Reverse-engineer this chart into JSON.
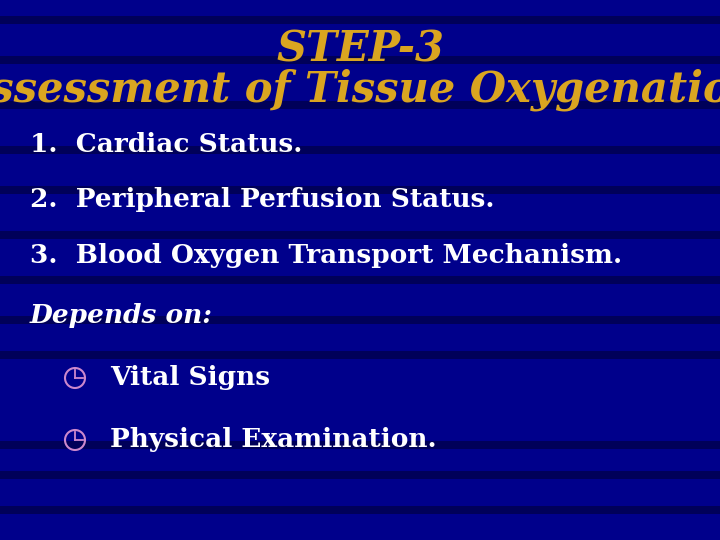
{
  "background_color": "#00008B",
  "title_line1": "STEP-3",
  "title_line2": "Assessment of Tissue Oxygenation",
  "title_color": "#DAA520",
  "title_fontsize1": 30,
  "title_fontsize2": 30,
  "body_color": "#FFFFFF",
  "body_fontsize": 19,
  "items": [
    "1.  Cardiac Status.",
    "2.  Peripheral Perfusion Status.",
    "3.  Blood Oxygen Transport Mechanism."
  ],
  "sub_header": "Depends on:",
  "sub_header_fontsize": 19,
  "sub_items": [
    "Vital Signs",
    "Physical Examination."
  ],
  "sub_item_fontsize": 19,
  "bullet_color": "#CC88CC",
  "stripe_color": "#000055",
  "num_stripes": 18
}
